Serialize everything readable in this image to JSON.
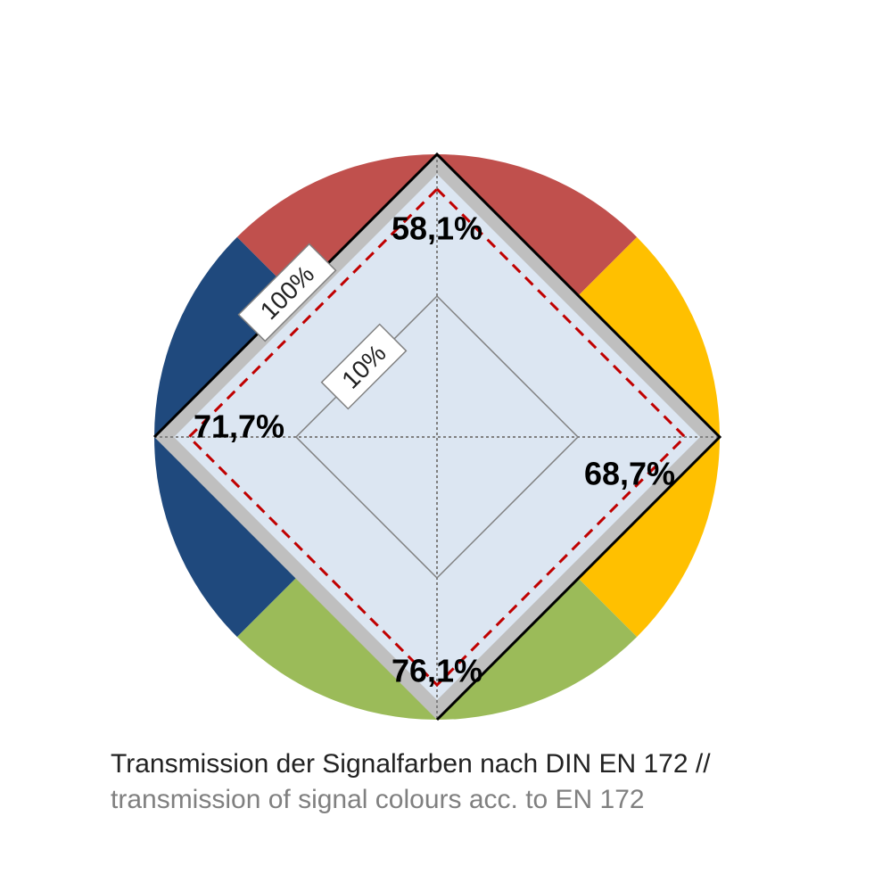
{
  "chart_data": {
    "type": "radar",
    "scale_max_label": "100%",
    "scale_inner_label": "10%",
    "axes": [
      {
        "name": "red",
        "color": "#C0504D",
        "value": 58.1,
        "label": "58,1%"
      },
      {
        "name": "yellow",
        "color": "#FFC000",
        "value": 68.7,
        "label": "68,7%"
      },
      {
        "name": "green",
        "color": "#9BBB59",
        "value": 76.1,
        "label": "76,1%"
      },
      {
        "name": "blue",
        "color": "#1F497D",
        "value": 71.7,
        "label": "71,7%"
      }
    ],
    "grid": true,
    "legend": "none"
  },
  "colors": {
    "inner_fill": "#DCE6F2",
    "frame_gray": "#BFBFBF",
    "dashed_line": "#C00000",
    "grid_line": "#808080"
  },
  "caption": {
    "line1": "Transmission der Signalfarben nach DIN EN 172 //",
    "line2": "transmission of signal colours acc. to EN 172"
  }
}
